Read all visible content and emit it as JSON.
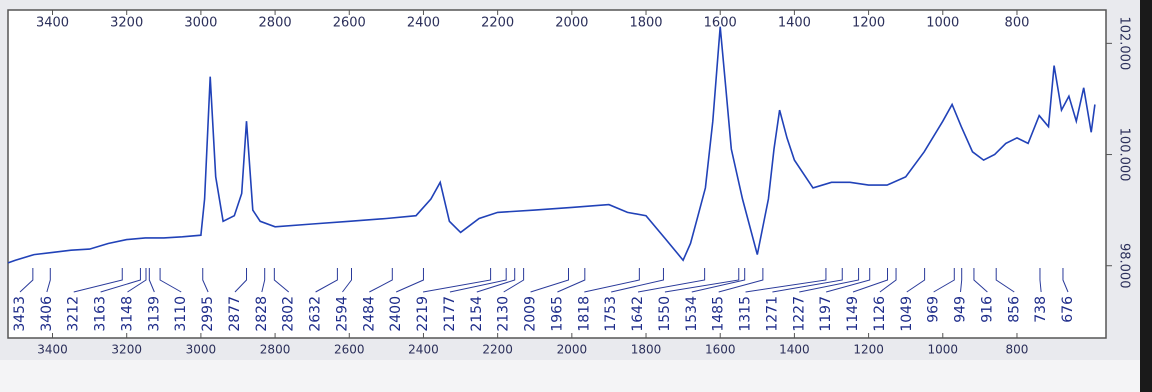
{
  "chart_data": {
    "type": "line",
    "x": [
      3520,
      3500,
      3450,
      3400,
      3350,
      3300,
      3250,
      3200,
      3150,
      3100,
      3050,
      3000,
      2990,
      2975,
      2960,
      2940,
      2910,
      2890,
      2877,
      2860,
      2840,
      2800,
      2700,
      2600,
      2500,
      2420,
      2380,
      2355,
      2330,
      2300,
      2250,
      2200,
      2100,
      2000,
      1900,
      1850,
      1800,
      1750,
      1700,
      1680,
      1660,
      1640,
      1620,
      1600,
      1585,
      1570,
      1540,
      1500,
      1470,
      1455,
      1440,
      1420,
      1400,
      1350,
      1300,
      1250,
      1200,
      1150,
      1100,
      1050,
      1000,
      975,
      950,
      920,
      890,
      860,
      830,
      800,
      770,
      740,
      715,
      700,
      680,
      660,
      640,
      620,
      600,
      590
    ],
    "series": [
      {
        "color": "#2142b8",
        "values": [
          98.05,
          98.1,
          98.2,
          98.24,
          98.28,
          98.3,
          98.4,
          98.47,
          98.5,
          98.5,
          98.52,
          98.55,
          99.2,
          101.4,
          99.6,
          98.8,
          98.9,
          99.3,
          100.6,
          99.0,
          98.8,
          98.7,
          98.75,
          98.8,
          98.85,
          98.9,
          99.2,
          99.5,
          98.8,
          98.6,
          98.85,
          98.96,
          99.0,
          99.05,
          99.1,
          98.96,
          98.9,
          98.5,
          98.1,
          98.4,
          98.9,
          99.4,
          100.6,
          102.3,
          101.2,
          100.1,
          99.2,
          98.2,
          99.2,
          100.1,
          100.8,
          100.3,
          99.9,
          99.4,
          99.5,
          99.5,
          99.45,
          99.45,
          99.6,
          100.05,
          100.6,
          100.9,
          100.5,
          100.05,
          99.9,
          100.0,
          100.2,
          100.3,
          100.2,
          100.7,
          100.5,
          101.6,
          100.8,
          101.05,
          100.6,
          101.2,
          100.4,
          100.9
        ]
      }
    ],
    "xlim": [
      3520,
      560
    ],
    "xticks": [
      3400,
      3200,
      3000,
      2800,
      2600,
      2400,
      2200,
      2000,
      1800,
      1600,
      1400,
      1200,
      1000,
      800
    ],
    "ylim": [
      96.7,
      102.6
    ],
    "yticks": [
      {
        "value": 98,
        "label": "98.000"
      },
      {
        "value": 100,
        "label": "100.000"
      },
      {
        "value": 102,
        "label": "102.000"
      }
    ],
    "peak_labels": [
      3453,
      3406,
      3212,
      3163,
      3148,
      3139,
      3110,
      2995,
      2877,
      2828,
      2802,
      2632,
      2594,
      2484,
      2400,
      2219,
      2177,
      2154,
      2130,
      2009,
      1965,
      1818,
      1753,
      1642,
      1550,
      1534,
      1485,
      1315,
      1271,
      1227,
      1197,
      1149,
      1126,
      1049,
      969,
      949,
      916,
      856,
      738,
      676
    ]
  }
}
